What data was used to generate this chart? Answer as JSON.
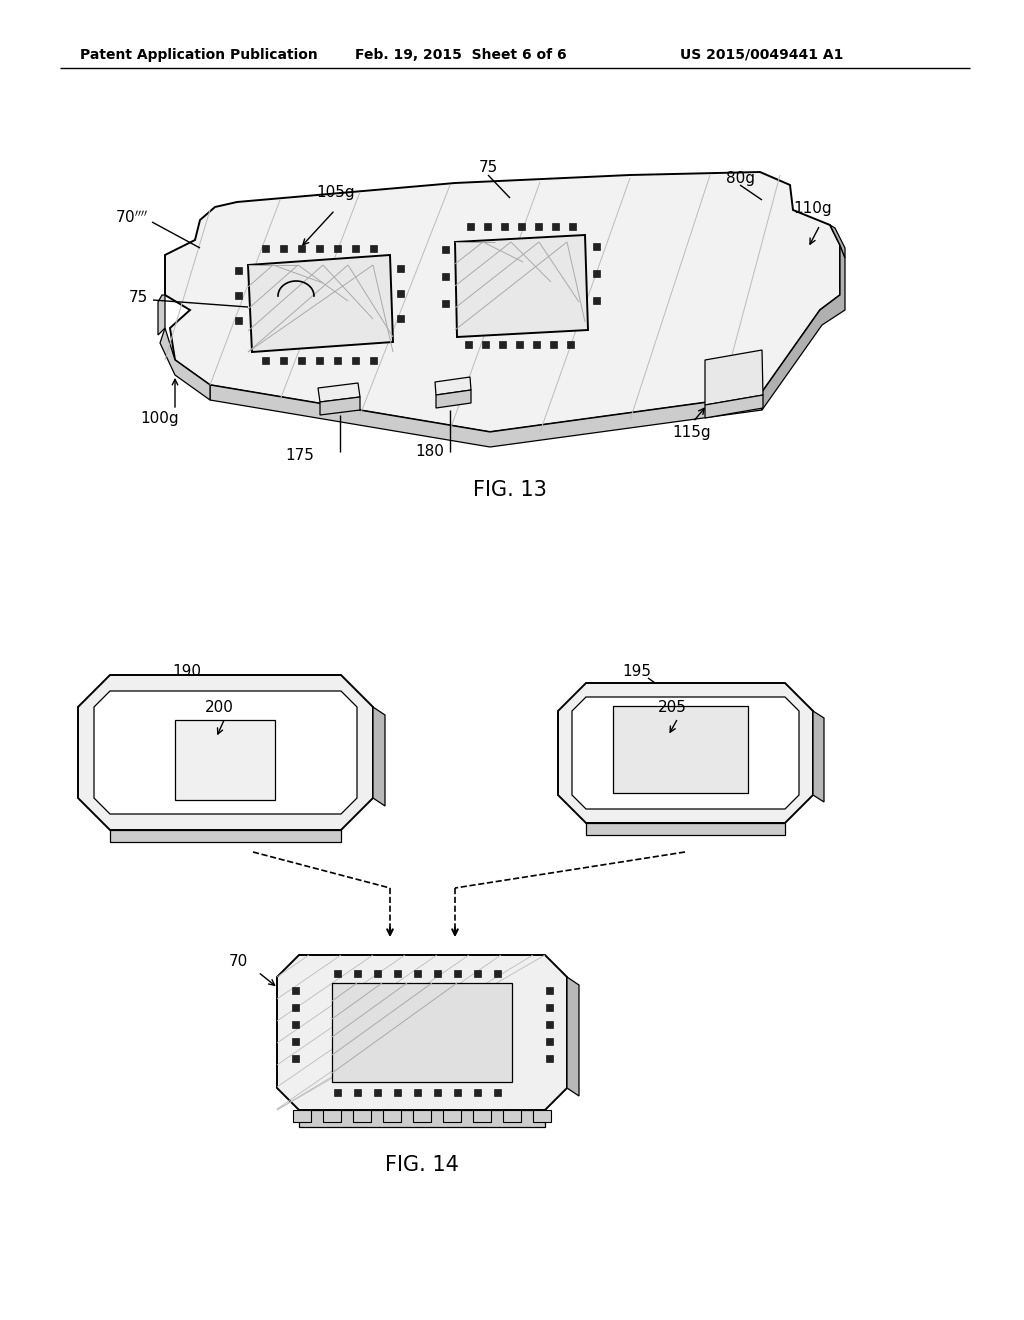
{
  "bg_color": "#ffffff",
  "header_left": "Patent Application Publication",
  "header_mid": "Feb. 19, 2015  Sheet 6 of 6",
  "header_right": "US 2015/0049441 A1",
  "fig13_title": "FIG. 13",
  "fig14_title": "FIG. 14",
  "line_color": "#000000",
  "lw_main": 1.4,
  "lw_thin": 0.9,
  "pad_color": "#222222",
  "board_face": "#f2f2f2",
  "board_side": "#cccccc",
  "board_dark": "#b0b0b0",
  "chip_face": "#e8e8e8",
  "hatch_col": "#bbbbbb"
}
